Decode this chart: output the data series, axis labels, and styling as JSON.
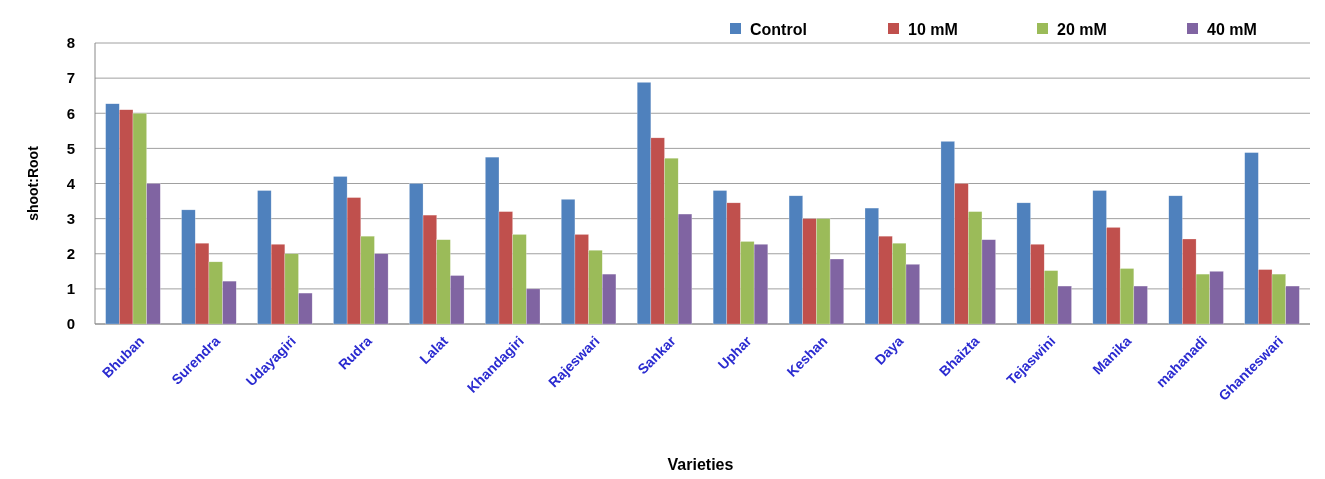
{
  "chart_data": {
    "type": "bar",
    "xlabel": "Varieties",
    "ylabel": "shoot:Root",
    "categories": [
      "Bhuban",
      "Surendra",
      "Udayagiri",
      "Rudra",
      "Lalat",
      "Khandagiri",
      "Rajeswari",
      "Sankar",
      "Uphar",
      "Keshan",
      "Daya",
      "Bhaizta",
      "Tejaswini",
      "Manika",
      "mahanadi",
      "Ghanteswari"
    ],
    "series": [
      {
        "name": "Control",
        "color": "#4f81bd",
        "values": [
          6.27,
          3.25,
          3.8,
          4.2,
          4.0,
          4.75,
          3.55,
          6.88,
          3.8,
          3.65,
          3.3,
          5.2,
          3.45,
          3.8,
          3.65,
          4.88
        ]
      },
      {
        "name": "10 mM",
        "color": "#c0504d",
        "values": [
          6.1,
          2.3,
          2.27,
          3.6,
          3.1,
          3.2,
          2.55,
          5.3,
          3.45,
          3.0,
          2.5,
          4.0,
          2.27,
          2.75,
          2.42,
          1.55
        ]
      },
      {
        "name": "20 mM",
        "color": "#9bbb59",
        "values": [
          6.0,
          1.77,
          2.0,
          2.5,
          2.4,
          2.55,
          2.1,
          4.72,
          2.35,
          3.0,
          2.3,
          3.2,
          1.52,
          1.58,
          1.42,
          1.42
        ]
      },
      {
        "name": "40 mM",
        "color": "#8064a2",
        "values": [
          4.0,
          1.22,
          0.88,
          2.0,
          1.38,
          1.0,
          1.42,
          3.13,
          2.27,
          1.85,
          1.7,
          2.4,
          1.08,
          1.08,
          1.5,
          1.08
        ]
      }
    ],
    "ylim": [
      0,
      8
    ],
    "yticks": [
      0,
      1,
      2,
      3,
      4,
      5,
      6,
      7,
      8
    ],
    "grid": "y",
    "legend": "top right"
  }
}
